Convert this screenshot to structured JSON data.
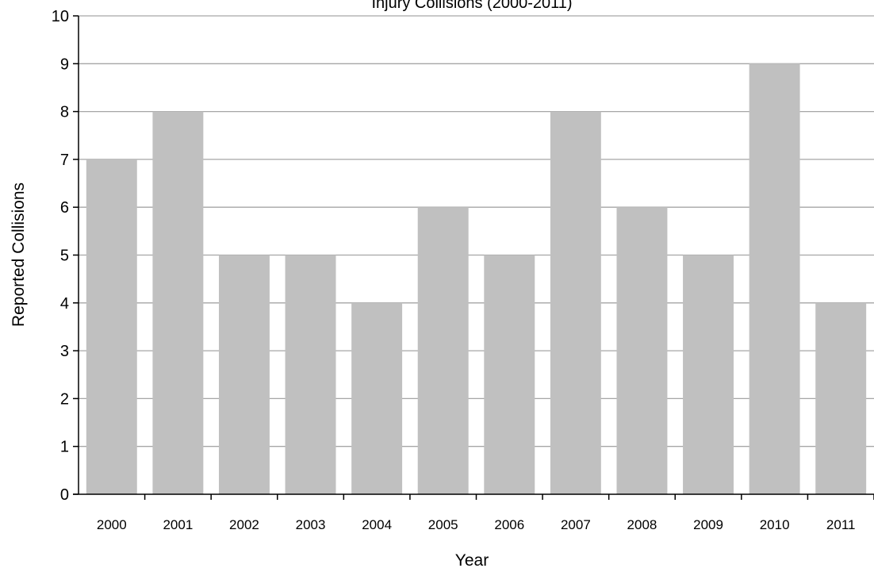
{
  "chart_data": {
    "type": "bar",
    "title": "Injury Collisions (2000-2011)",
    "xlabel": "Year",
    "ylabel": "Reported Collisions",
    "categories": [
      "2000",
      "2001",
      "2002",
      "2003",
      "2004",
      "2005",
      "2006",
      "2007",
      "2008",
      "2009",
      "2010",
      "2011"
    ],
    "values": [
      7,
      8,
      5,
      5,
      4,
      6,
      5,
      8,
      6,
      5,
      9,
      4
    ],
    "ylim": [
      0,
      10
    ],
    "yticks": [
      "0",
      "1",
      "2",
      "3",
      "4",
      "5",
      "6",
      "7",
      "8",
      "9",
      "10"
    ],
    "grid": true,
    "legend": "none",
    "bar_color": "#c0c0c0",
    "grid_color": "#a6a6a6",
    "axis_color": "#000000"
  }
}
